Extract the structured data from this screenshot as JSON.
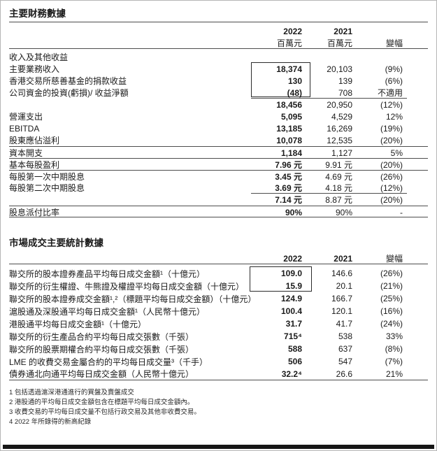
{
  "section1": {
    "title": "主要財務數據",
    "header": {
      "y2022": "2022",
      "y2021": "2021",
      "unit2022": "百萬元",
      "unit2021": "百萬元",
      "change_label": "變幅"
    },
    "rows": [
      {
        "label": "收入及其他收益",
        "v2022": "",
        "v2021": "",
        "change": ""
      },
      {
        "label": "主要業務收入",
        "v2022": "18,374",
        "v2021": "20,103",
        "change": "(9%)"
      },
      {
        "label": "香港交易所慈善基金的捐款收益",
        "v2022": "130",
        "v2021": "139",
        "change": "(6%)"
      },
      {
        "label": "公司資金的投資(虧損)/ 收益淨額",
        "v2022": "(48)",
        "v2021": "708",
        "change": "不適用"
      },
      {
        "label": "",
        "v2022": "18,456",
        "v2021": "20,950",
        "change": "(12%)"
      },
      {
        "label": "營運支出",
        "v2022": "5,095",
        "v2021": "4,529",
        "change": "12%"
      },
      {
        "label": "EBITDA",
        "v2022": "13,185",
        "v2021": "16,269",
        "change": "(19%)"
      },
      {
        "label": "股東應佔溢利",
        "v2022": "10,078",
        "v2021": "12,535",
        "change": "(20%)"
      },
      {
        "label": "資本開支",
        "v2022": "1,184",
        "v2021": "1,127",
        "change": "5%"
      },
      {
        "label": "基本每股盈利",
        "v2022": "7.96 元",
        "v2021": "9.91 元",
        "change": "(20%)"
      },
      {
        "label": "每股第一次中期股息",
        "v2022": "3.45 元",
        "v2021": "4.69 元",
        "change": "(26%)"
      },
      {
        "label": "每股第二次中期股息",
        "v2022": "3.69 元",
        "v2021": "4.18 元",
        "change": "(12%)"
      },
      {
        "label": "",
        "v2022": "7.14 元",
        "v2021": "8.87 元",
        "change": "(20%)"
      },
      {
        "label": "股息派付比率",
        "v2022": "90%",
        "v2021": "90%",
        "change": "-"
      }
    ]
  },
  "section2": {
    "title": "市場成交主要統計數據",
    "header": {
      "y2022": "2022",
      "y2021": "2021",
      "change_label": "變幅"
    },
    "rows": [
      {
        "label": "聯交所的股本證券產品平均每日成交金額¹（十億元）",
        "v2022": "109.0",
        "v2021": "146.6",
        "change": "(26%)"
      },
      {
        "label": "聯交所的衍生權證、牛熊證及權證平均每日成交金額（十億元）",
        "v2022": "15.9",
        "v2021": "20.1",
        "change": "(21%)"
      },
      {
        "label": "聯交所的股本證券成交金額¹,²（標題平均每日成交金額）（十億元）",
        "v2022": "124.9",
        "v2021": "166.7",
        "change": "(25%)"
      },
      {
        "label": "滬股通及深股通平均每日成交金額¹（人民幣十億元）",
        "v2022": "100.4",
        "v2021": "120.1",
        "change": "(16%)"
      },
      {
        "label": "港股通平均每日成交金額¹（十億元）",
        "v2022": "31.7",
        "v2021": "41.7",
        "change": "(24%)"
      },
      {
        "label": "聯交所的衍生產品合約平均每日成交張數（千張）",
        "v2022": "715⁴",
        "v2021": "538",
        "change": "33%"
      },
      {
        "label": "聯交所的股票期權合約平均每日成交張數（千張）",
        "v2022": "588",
        "v2021": "637",
        "change": "(8%)"
      },
      {
        "label": "LME 的收費交易金屬合約的平均每日成交量³（千手）",
        "v2022": "506",
        "v2021": "547",
        "change": "(7%)"
      },
      {
        "label": "債券通北向通平均每日成交金額（人民幣十億元）",
        "v2022": "32.2⁴",
        "v2021": "26.6",
        "change": "21%"
      }
    ],
    "footnotes": [
      "1 包括透過滬深港通進行的買盤及賣盤成交",
      "2 港股通的平均每日成交金額包含在標題平均每日成交金額內。",
      "3 收費交易的平均每日成交量不包括行政交易及其他非收費交易。",
      "4 2022 年所錄得的新高紀錄"
    ]
  }
}
